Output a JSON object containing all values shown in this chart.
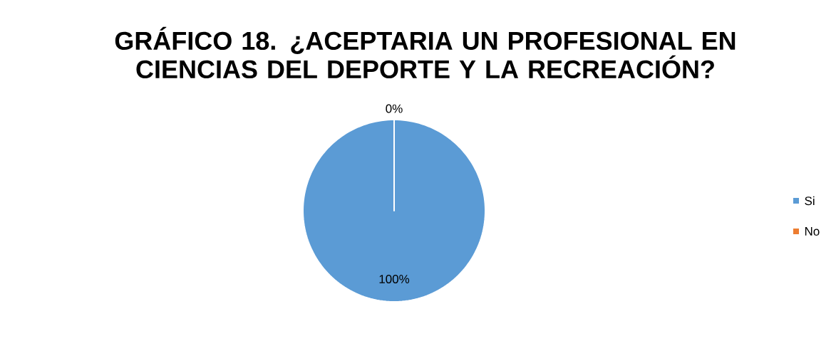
{
  "chart_data": {
    "type": "pie",
    "title": "GRÁFICO 18. ¿ACEPTARIA UN PROFESIONAL EN CIENCIAS DEL DEPORTE  Y LA RECREACIÓN?",
    "categories": [
      "Si",
      "No"
    ],
    "values": [
      100,
      0
    ],
    "colors": [
      "#5b9bd5",
      "#ed7d31"
    ],
    "value_labels": [
      "100%",
      "0%"
    ],
    "legend": "right"
  }
}
